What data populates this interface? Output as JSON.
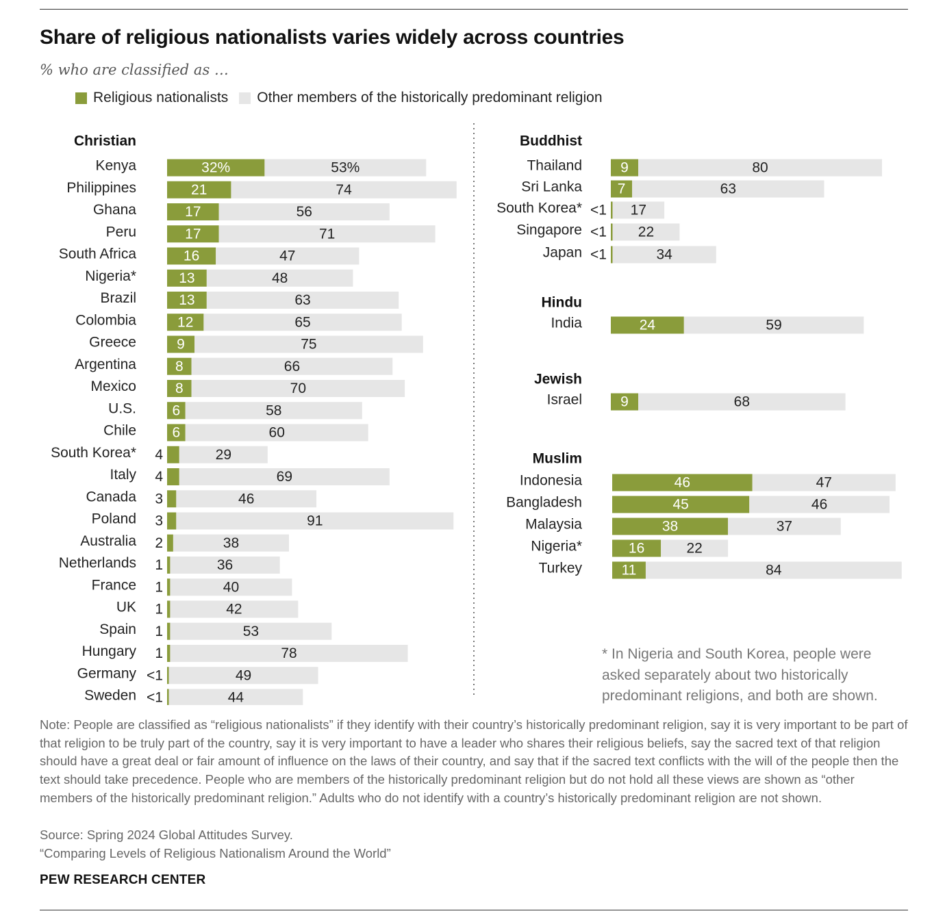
{
  "title": "Share of religious nationalists varies widely across countries",
  "subtitle": "% who are classified as …",
  "legend": {
    "nationalists": "Religious nationalists",
    "others": "Other members of the historically predominant religion"
  },
  "colors": {
    "nationalists": "#8a9c3b",
    "others": "#e6e6e6",
    "divider": "#777777"
  },
  "chart_data": {
    "type": "bar",
    "orientation": "horizontal",
    "stacked": true,
    "series_names": [
      "Religious nationalists",
      "Other members of the historically predominant religion"
    ],
    "groups": [
      {
        "name": "Christian",
        "rows": [
          {
            "label": "Kenya",
            "nat": 32,
            "other": 53,
            "nat_label": "32%",
            "other_label": "53%"
          },
          {
            "label": "Philippines",
            "nat": 21,
            "other": 74,
            "nat_label": "21",
            "other_label": "74"
          },
          {
            "label": "Ghana",
            "nat": 17,
            "other": 56,
            "nat_label": "17",
            "other_label": "56"
          },
          {
            "label": "Peru",
            "nat": 17,
            "other": 71,
            "nat_label": "17",
            "other_label": "71"
          },
          {
            "label": "South Africa",
            "nat": 16,
            "other": 47,
            "nat_label": "16",
            "other_label": "47"
          },
          {
            "label": "Nigeria*",
            "nat": 13,
            "other": 48,
            "nat_label": "13",
            "other_label": "48"
          },
          {
            "label": "Brazil",
            "nat": 13,
            "other": 63,
            "nat_label": "13",
            "other_label": "63"
          },
          {
            "label": "Colombia",
            "nat": 12,
            "other": 65,
            "nat_label": "12",
            "other_label": "65"
          },
          {
            "label": "Greece",
            "nat": 9,
            "other": 75,
            "nat_label": "9",
            "other_label": "75"
          },
          {
            "label": "Argentina",
            "nat": 8,
            "other": 66,
            "nat_label": "8",
            "other_label": "66"
          },
          {
            "label": "Mexico",
            "nat": 8,
            "other": 70,
            "nat_label": "8",
            "other_label": "70"
          },
          {
            "label": "U.S.",
            "nat": 6,
            "other": 58,
            "nat_label": "6",
            "other_label": "58"
          },
          {
            "label": "Chile",
            "nat": 6,
            "other": 60,
            "nat_label": "6",
            "other_label": "60"
          },
          {
            "label": "South Korea*",
            "nat": 4,
            "other": 29,
            "nat_label": "4",
            "other_label": "29"
          },
          {
            "label": "Italy",
            "nat": 4,
            "other": 69,
            "nat_label": "4",
            "other_label": "69"
          },
          {
            "label": "Canada",
            "nat": 3,
            "other": 46,
            "nat_label": "3",
            "other_label": "46"
          },
          {
            "label": "Poland",
            "nat": 3,
            "other": 91,
            "nat_label": "3",
            "other_label": "91"
          },
          {
            "label": "Australia",
            "nat": 2,
            "other": 38,
            "nat_label": "2",
            "other_label": "38"
          },
          {
            "label": "Netherlands",
            "nat": 1,
            "other": 36,
            "nat_label": "1",
            "other_label": "36"
          },
          {
            "label": "France",
            "nat": 1,
            "other": 40,
            "nat_label": "1",
            "other_label": "40"
          },
          {
            "label": "UK",
            "nat": 1,
            "other": 42,
            "nat_label": "1",
            "other_label": "42"
          },
          {
            "label": "Spain",
            "nat": 1,
            "other": 53,
            "nat_label": "1",
            "other_label": "53"
          },
          {
            "label": "Hungary",
            "nat": 1,
            "other": 78,
            "nat_label": "1",
            "other_label": "78"
          },
          {
            "label": "Germany",
            "nat": 0.4,
            "other": 49,
            "nat_label": "<1",
            "other_label": "49"
          },
          {
            "label": "Sweden",
            "nat": 0.4,
            "other": 44,
            "nat_label": "<1",
            "other_label": "44"
          }
        ]
      },
      {
        "name": "Buddhist",
        "rows": [
          {
            "label": "Thailand",
            "nat": 9,
            "other": 80,
            "nat_label": "9",
            "other_label": "80"
          },
          {
            "label": "Sri Lanka",
            "nat": 7,
            "other": 63,
            "nat_label": "7",
            "other_label": "63"
          },
          {
            "label": "South Korea*",
            "nat": 0.4,
            "other": 17,
            "nat_label": "<1",
            "other_label": "17"
          },
          {
            "label": "Singapore",
            "nat": 0.4,
            "other": 22,
            "nat_label": "<1",
            "other_label": "22"
          },
          {
            "label": "Japan",
            "nat": 0.4,
            "other": 34,
            "nat_label": "<1",
            "other_label": "34"
          }
        ]
      },
      {
        "name": "Hindu",
        "rows": [
          {
            "label": "India",
            "nat": 24,
            "other": 59,
            "nat_label": "24",
            "other_label": "59"
          }
        ]
      },
      {
        "name": "Jewish",
        "rows": [
          {
            "label": "Israel",
            "nat": 9,
            "other": 68,
            "nat_label": "9",
            "other_label": "68"
          }
        ]
      },
      {
        "name": "Muslim",
        "rows": [
          {
            "label": "Indonesia",
            "nat": 46,
            "other": 47,
            "nat_label": "46",
            "other_label": "47"
          },
          {
            "label": "Bangladesh",
            "nat": 45,
            "other": 46,
            "nat_label": "45",
            "other_label": "46"
          },
          {
            "label": "Malaysia",
            "nat": 38,
            "other": 37,
            "nat_label": "38",
            "other_label": "37"
          },
          {
            "label": "Nigeria*",
            "nat": 16,
            "other": 22,
            "nat_label": "16",
            "other_label": "22"
          },
          {
            "label": "Turkey",
            "nat": 11,
            "other": 84,
            "nat_label": "11",
            "other_label": "84"
          }
        ]
      }
    ]
  },
  "footnote": "* In Nigeria and South Korea, people were asked separately about two historically predominant religions, and both are shown.",
  "note": "Note: People are classified as “religious nationalists” if they identify with their country’s historically predominant religion, say it is very important to be part of that religion to be truly part of the country, say it is very important to have a leader who shares their religious beliefs, say the sacred text of that religion should have a great deal or fair amount of influence on the laws of their country, and say that if the sacred text conflicts with the will of the people then the text should take precedence. People who are members of the historically predominant religion but do not hold all these views are shown as “other members of the historically predominant religion.” Adults who do not identify with a country’s historically predominant religion are not shown.",
  "source": "Source: Spring 2024 Global Attitudes Survey.",
  "report": "“Comparing Levels of Religious Nationalism Around the World”",
  "brand": "PEW RESEARCH CENTER"
}
